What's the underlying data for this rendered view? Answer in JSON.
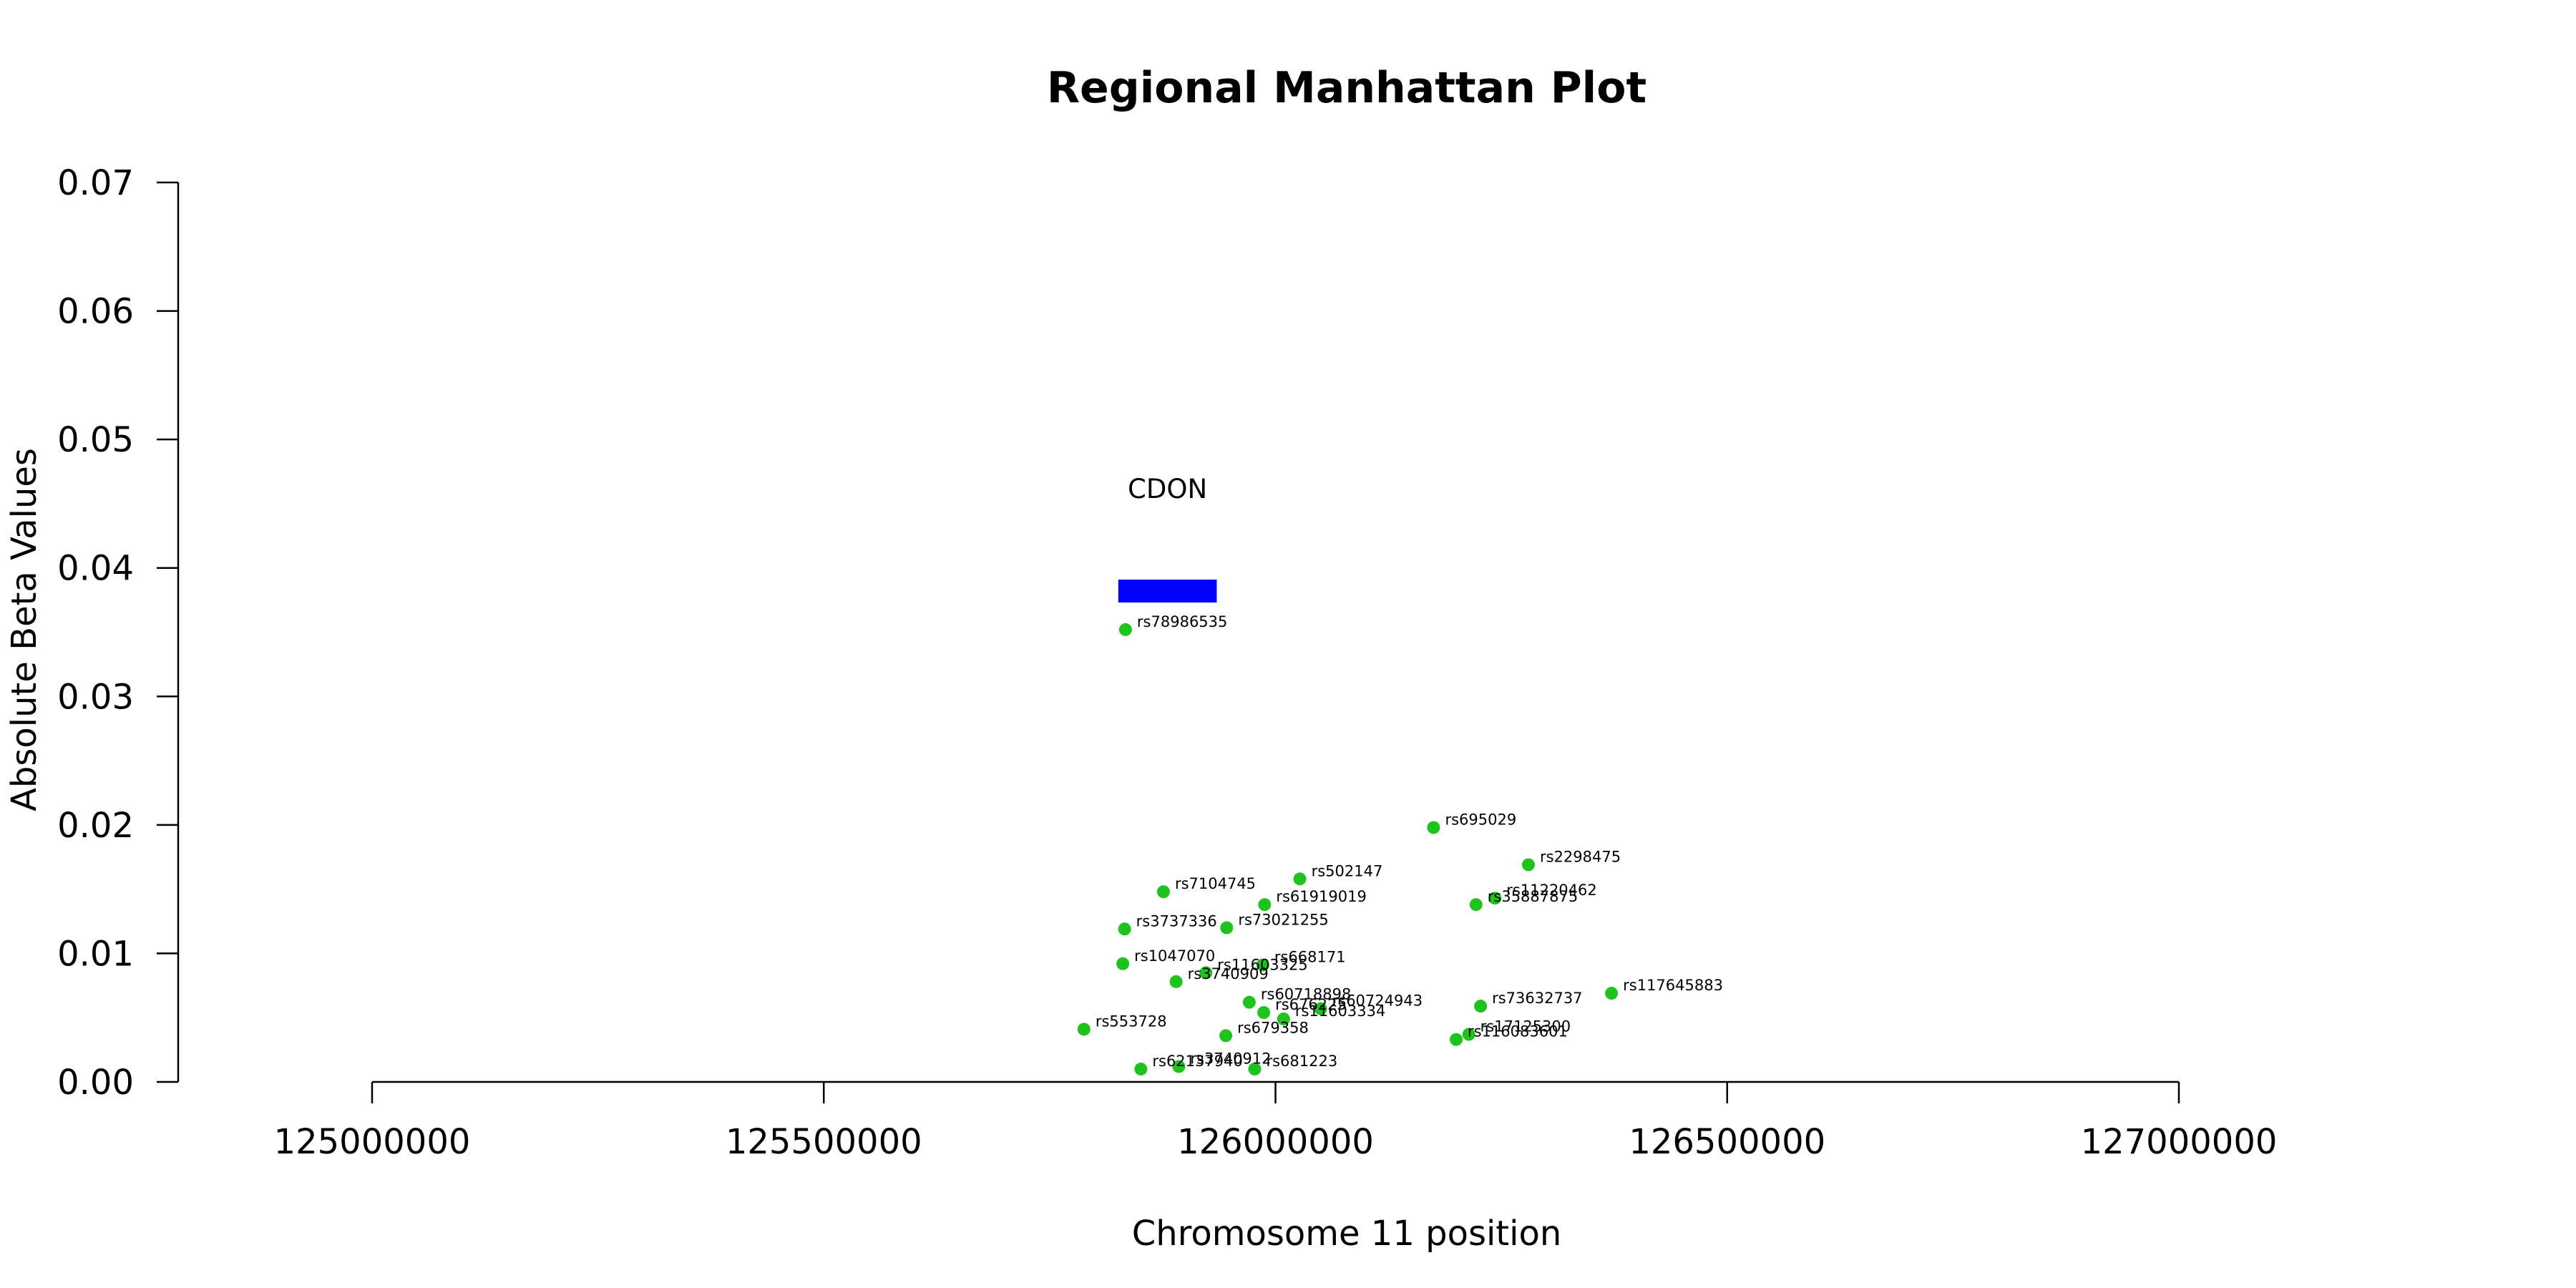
{
  "chart_data": {
    "type": "scatter",
    "title": "Regional Manhattan Plot",
    "xlabel": "Chromosome 11 position",
    "ylabel": "Absolute Beta Values",
    "xlim": [
      125000000,
      127000000
    ],
    "ylim": [
      0,
      0.07
    ],
    "x_ticks": [
      125000000,
      125500000,
      126000000,
      126500000,
      127000000
    ],
    "y_ticks": [
      0.0,
      0.01,
      0.02,
      0.03,
      0.04,
      0.05,
      0.06,
      0.07
    ],
    "x_tick_labels": [
      "125000000",
      "125500000",
      "126000000",
      "126500000",
      "127000000"
    ],
    "y_tick_labels": [
      "0.00",
      "0.01",
      "0.02",
      "0.03",
      "0.04",
      "0.05",
      "0.06",
      "0.07"
    ],
    "point_color": "#1ec31e",
    "gene_color": "#0000ff",
    "genes": [
      {
        "name": "CDON",
        "start": 125826000,
        "end": 125935000,
        "y": 0.0382
      }
    ],
    "points": [
      {
        "snp": "rs78986535",
        "x": 125834000,
        "y": 0.0352
      },
      {
        "snp": "rs695029",
        "x": 126175000,
        "y": 0.0198
      },
      {
        "snp": "rs2298475",
        "x": 126280000,
        "y": 0.0169
      },
      {
        "snp": "rs502147",
        "x": 126027000,
        "y": 0.0158
      },
      {
        "snp": "rs7104745",
        "x": 125876000,
        "y": 0.0148
      },
      {
        "snp": "rs11220462",
        "x": 126243000,
        "y": 0.0143
      },
      {
        "snp": "rs35887875",
        "x": 126222000,
        "y": 0.0138
      },
      {
        "snp": "rs61919019",
        "x": 125988000,
        "y": 0.0138
      },
      {
        "snp": "rs3737336",
        "x": 125833000,
        "y": 0.0119
      },
      {
        "snp": "rs73021255",
        "x": 125946000,
        "y": 0.012
      },
      {
        "snp": "rs1047070",
        "x": 125831000,
        "y": 0.0092
      },
      {
        "snp": "rs668171",
        "x": 125986000,
        "y": 0.0091
      },
      {
        "snp": "rs11603325",
        "x": 125923000,
        "y": 0.0085
      },
      {
        "snp": "rs3740909",
        "x": 125890000,
        "y": 0.0078
      },
      {
        "snp": "rs117645883",
        "x": 126372000,
        "y": 0.0069
      },
      {
        "snp": "rs73632737",
        "x": 126227000,
        "y": 0.0059
      },
      {
        "snp": "rs60718898",
        "x": 125971000,
        "y": 0.0062
      },
      {
        "snp": "rs60724943",
        "x": 126050000,
        "y": 0.0057
      },
      {
        "snp": "rs676225",
        "x": 125987000,
        "y": 0.0054
      },
      {
        "snp": "rs11603334",
        "x": 126009000,
        "y": 0.0049
      },
      {
        "snp": "rs553728",
        "x": 125788000,
        "y": 0.0041
      },
      {
        "snp": "rs679358",
        "x": 125945000,
        "y": 0.0036
      },
      {
        "snp": "rs17125300",
        "x": 126214000,
        "y": 0.0037
      },
      {
        "snp": "rs116083601",
        "x": 126200000,
        "y": 0.0033
      },
      {
        "snp": "rs62137940",
        "x": 125851000,
        "y": 0.001
      },
      {
        "snp": "rs3740912",
        "x": 125893000,
        "y": 0.0012
      },
      {
        "snp": "rs681223",
        "x": 125977000,
        "y": 0.001
      }
    ]
  }
}
